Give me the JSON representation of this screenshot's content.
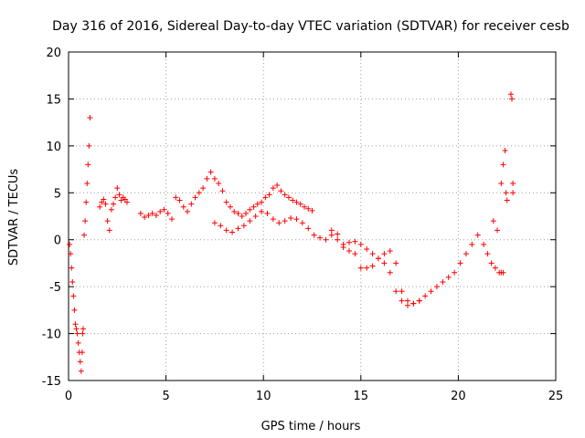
{
  "chart_data": {
    "type": "scatter",
    "title": "Day 316 of 2016, Sidereal Day-to-day VTEC variation (SDTVAR) for receiver cesb",
    "xlabel": "GPS time / hours",
    "ylabel": "SDTVAR / TECUs",
    "xlim": [
      0,
      25
    ],
    "ylim": [
      -15,
      20
    ],
    "xticks": [
      0,
      5,
      10,
      15,
      20,
      25
    ],
    "yticks": [
      -15,
      -10,
      -5,
      0,
      5,
      10,
      15,
      20
    ],
    "grid": true,
    "marker": "+",
    "color": "#ff0000",
    "series": [
      {
        "name": "SDTVAR",
        "x": [
          0.05,
          0.1,
          0.15,
          0.2,
          0.25,
          0.3,
          0.35,
          0.4,
          0.45,
          0.5,
          0.55,
          0.6,
          0.65,
          0.7,
          0.72,
          0.75,
          0.8,
          0.85,
          0.9,
          0.95,
          1.0,
          1.05,
          1.1,
          1.6,
          1.7,
          1.8,
          1.9,
          2.0,
          2.1,
          2.2,
          2.3,
          2.4,
          2.5,
          2.6,
          2.7,
          2.8,
          2.9,
          3.0,
          3.7,
          3.9,
          4.1,
          4.3,
          4.5,
          4.7,
          4.9,
          5.1,
          5.3,
          5.5,
          5.7,
          5.9,
          6.1,
          6.3,
          6.5,
          6.7,
          6.9,
          7.1,
          7.3,
          7.5,
          7.7,
          7.9,
          8.1,
          8.3,
          8.5,
          8.7,
          8.9,
          9.1,
          9.3,
          9.5,
          9.7,
          9.9,
          10.1,
          10.3,
          10.5,
          10.7,
          10.9,
          11.1,
          11.3,
          11.5,
          11.7,
          11.9,
          12.1,
          12.3,
          12.5,
          7.5,
          7.8,
          8.1,
          8.4,
          8.7,
          9.0,
          9.3,
          9.6,
          9.9,
          10.2,
          10.5,
          10.8,
          11.1,
          11.4,
          11.7,
          12.0,
          12.3,
          12.6,
          12.9,
          13.2,
          13.5,
          13.8,
          14.1,
          14.4,
          14.7,
          15.0,
          15.3,
          15.6,
          15.9,
          16.2,
          16.5,
          16.8,
          17.1,
          17.4,
          17.7,
          18.0,
          18.3,
          18.6,
          18.9,
          19.2,
          19.5,
          19.8,
          20.1,
          20.4,
          20.7,
          21.0,
          21.3,
          21.5,
          21.7,
          21.9,
          22.1,
          22.2,
          22.3,
          13.5,
          13.8,
          14.1,
          14.4,
          14.7,
          15.0,
          15.3,
          15.6,
          15.9,
          16.2,
          16.5,
          16.8,
          17.1,
          17.4,
          17.7,
          18.0,
          21.8,
          22.0,
          22.2,
          22.3,
          22.4,
          22.45,
          22.5,
          22.7,
          22.75,
          22.8,
          22.8
        ],
        "y": [
          -0.5,
          -1.5,
          -3,
          -4.5,
          -6,
          -7.5,
          -9,
          -9.5,
          -10,
          -11,
          -12,
          -13,
          -14,
          -12,
          -10,
          -9.5,
          0.5,
          2,
          4,
          6,
          8,
          10,
          13,
          3.5,
          4,
          4.3,
          3.8,
          2,
          1,
          3.2,
          3.8,
          4.5,
          5.5,
          4.8,
          4.2,
          4.5,
          4.3,
          4.0,
          2.8,
          2.4,
          2.6,
          2.8,
          2.6,
          3.0,
          3.2,
          2.8,
          2.2,
          4.5,
          4.2,
          3.5,
          3.0,
          3.8,
          4.5,
          5.0,
          5.5,
          6.5,
          7.2,
          6.5,
          6.0,
          5.2,
          4.0,
          3.5,
          3.0,
          2.8,
          2.5,
          2.8,
          3.2,
          3.5,
          3.8,
          4.0,
          4.5,
          4.8,
          5.5,
          5.8,
          5.2,
          4.8,
          4.5,
          4.2,
          4.0,
          3.8,
          3.5,
          3.3,
          3.1,
          1.8,
          1.5,
          1.0,
          0.8,
          1.2,
          1.5,
          2.0,
          2.5,
          3.0,
          2.8,
          2.2,
          1.8,
          2.0,
          2.3,
          2.2,
          1.8,
          1.2,
          0.5,
          0.2,
          0.0,
          1.0,
          0.6,
          -0.8,
          -1.2,
          -1.5,
          -3.0,
          -3.0,
          -2.8,
          -2.0,
          -1.5,
          -1.2,
          -2.5,
          -5.5,
          -6.5,
          -6.8,
          -6.5,
          -6.0,
          -5.5,
          -5.0,
          -4.5,
          -4.0,
          -3.5,
          -2.5,
          -1.5,
          -0.5,
          0.5,
          -0.5,
          -1.5,
          -2.5,
          -3.0,
          -3.5,
          -3.5,
          -3.5,
          0.5,
          0.0,
          -0.5,
          -0.3,
          -0.2,
          -0.5,
          -1.0,
          -1.5,
          -2.0,
          -2.5,
          -3.5,
          -5.5,
          -6.5,
          -7.0,
          -6.8,
          -6.5,
          2.0,
          1.0,
          6.0,
          8.0,
          9.5,
          5.0,
          4.2,
          15.5,
          15.0,
          6.0,
          5.0
        ]
      }
    ]
  }
}
